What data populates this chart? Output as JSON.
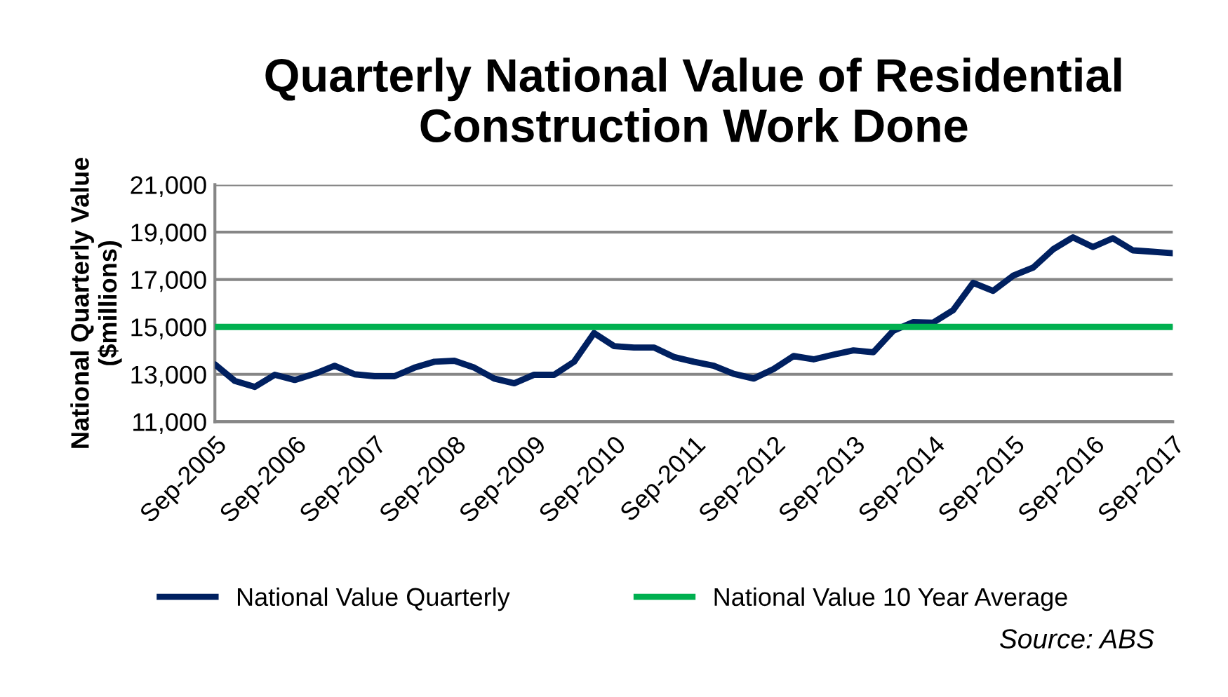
{
  "chart_data": {
    "type": "line",
    "title": "Quarterly National Value of Residential\nConstruction Work Done",
    "ylabel": "National Quarterly Value\n($millions)",
    "categories": [
      "Sep-2005",
      null,
      null,
      null,
      "Sep-2006",
      null,
      null,
      null,
      "Sep-2007",
      null,
      null,
      null,
      "Sep-2008",
      null,
      null,
      null,
      "Sep-2009",
      null,
      null,
      null,
      "Sep-2010",
      null,
      null,
      null,
      "Sep-2011",
      null,
      null,
      null,
      "Sep-2012",
      null,
      null,
      null,
      "Sep-2013",
      null,
      null,
      null,
      "Sep-2014",
      null,
      null,
      null,
      "Sep-2015",
      null,
      null,
      null,
      "Sep-2016",
      null,
      null,
      null,
      "Sep-2017"
    ],
    "series": [
      {
        "name": "National Value Quarterly",
        "color": "#002060",
        "values": [
          13420,
          12720,
          12470,
          12980,
          12760,
          13020,
          13360,
          13000,
          12920,
          12920,
          13280,
          13530,
          13570,
          13280,
          12820,
          12620,
          12980,
          12980,
          13530,
          14740,
          14190,
          14130,
          14130,
          13730,
          13530,
          13360,
          13020,
          12820,
          13220,
          13770,
          13630,
          13830,
          14010,
          13930,
          14840,
          15200,
          15180,
          15710,
          16860,
          16520,
          17160,
          17500,
          18270,
          18780,
          18370,
          18740,
          18230,
          18170,
          18110
        ]
      },
      {
        "name": "National Value 10 Year Average",
        "color": "#00b050",
        "values": [
          15000,
          15000,
          15000,
          15000,
          15000,
          15000,
          15000,
          15000,
          15000,
          15000,
          15000,
          15000,
          15000,
          15000,
          15000,
          15000,
          15000,
          15000,
          15000,
          15000,
          15000,
          15000,
          15000,
          15000,
          15000,
          15000,
          15000,
          15000,
          15000,
          15000,
          15000,
          15000,
          15000,
          15000,
          15000,
          15000,
          15000,
          15000,
          15000,
          15000,
          15000,
          15000,
          15000,
          15000,
          15000,
          15000,
          15000,
          15000,
          15000
        ]
      }
    ],
    "ylim": [
      11000,
      21000
    ],
    "yticks": [
      {
        "value": 11000,
        "label": "11,000"
      },
      {
        "value": 13000,
        "label": "13,000"
      },
      {
        "value": 15000,
        "label": "15,000"
      },
      {
        "value": 17000,
        "label": "17,000"
      },
      {
        "value": 19000,
        "label": "19,000"
      },
      {
        "value": 21000,
        "label": "21,000"
      }
    ],
    "grid": "y",
    "legend": "bottom",
    "line_style": "solid",
    "marker": "none",
    "annotations": [
      "Source: ABS"
    ]
  }
}
